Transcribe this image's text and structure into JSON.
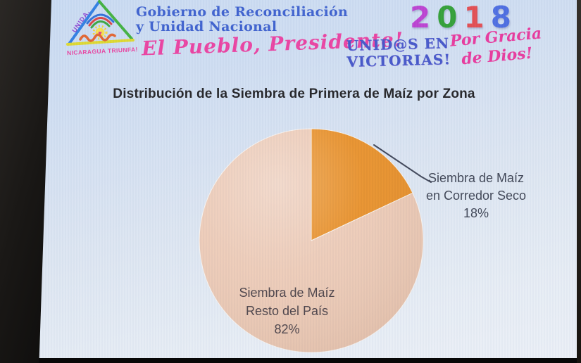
{
  "header": {
    "emblem": {
      "side_label": "UNIDA,",
      "bottom_label": "NICARAGUA TRIUNFA!"
    },
    "government_line1": "Gobierno de Reconciliación",
    "government_line2": "y Unidad Nacional",
    "slogan": "El Pueblo, Presidente!",
    "year": {
      "digits": [
        "2",
        "0",
        "1",
        "8"
      ],
      "colors": [
        "#bb3fd1",
        "#2f9e33",
        "#e34a4e",
        "#4a6ae0"
      ]
    },
    "united_line1": "UNID@S EN",
    "united_line2": "VICTORIAS!",
    "grace_line1": "Por Gracia",
    "grace_line2": "de Dios!"
  },
  "chart_data": {
    "type": "pie",
    "title": "Distribución de la Siembra de Primera de Maíz por Zona",
    "start_angle_deg": 0,
    "direction": "clockwise",
    "slices": [
      {
        "label": "Siembra de Maíz en Corredor Seco",
        "value": 18,
        "unit": "%",
        "color": "#E78A1D"
      },
      {
        "label": "Siembra de Maíz Resto del País",
        "value": 82,
        "unit": "%",
        "color": "#ECC8B3"
      }
    ],
    "legend_position": "none",
    "data_labels": "category + percent",
    "background_color": "#D9E3F0"
  },
  "pie_labels": {
    "corredor_seco": {
      "line1": "Siembra de Maíz",
      "line2": "en Corredor Seco",
      "value_label": "18%"
    },
    "resto_pais": {
      "line1": "Siembra de Maíz",
      "line2": "Resto del País",
      "value_label": "82%"
    }
  }
}
